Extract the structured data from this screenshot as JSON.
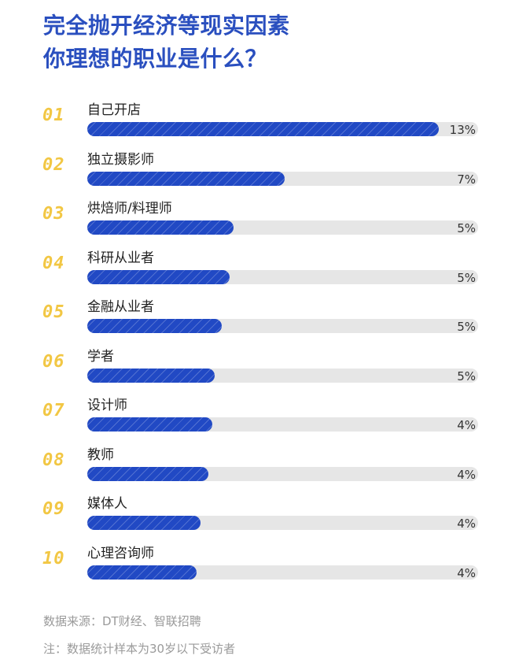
{
  "chart_data": {
    "type": "bar",
    "title": [
      "完全抛开经济等现实因素",
      "你理想的职业是什么？"
    ],
    "ranks": [
      "01",
      "02",
      "03",
      "04",
      "05",
      "06",
      "07",
      "08",
      "09",
      "10"
    ],
    "categories": [
      "自己开店",
      "独立摄影师",
      "烘焙师/料理师",
      "科研从业者",
      "金融从业者",
      "学者",
      "设计师",
      "教师",
      "媒体人",
      "心理咨询师"
    ],
    "values": [
      13,
      7,
      5,
      5,
      5,
      5,
      4,
      4,
      4,
      4
    ],
    "value_labels": [
      "13%",
      "7%",
      "5%",
      "5%",
      "5%",
      "5%",
      "4%",
      "4%",
      "4%",
      "4%"
    ],
    "relative_fill": [
      0.9,
      0.505,
      0.375,
      0.365,
      0.345,
      0.325,
      0.32,
      0.31,
      0.29,
      0.28
    ],
    "unit": "%"
  },
  "colors": {
    "title": "#2a4fbf",
    "bar": "#2149c4",
    "track": "#e6e6e6",
    "rank": "#f2c744"
  },
  "footer": {
    "source": "数据来源：DT财经、智联招聘",
    "note": "注：数据统计样本为30岁以下受访者"
  }
}
